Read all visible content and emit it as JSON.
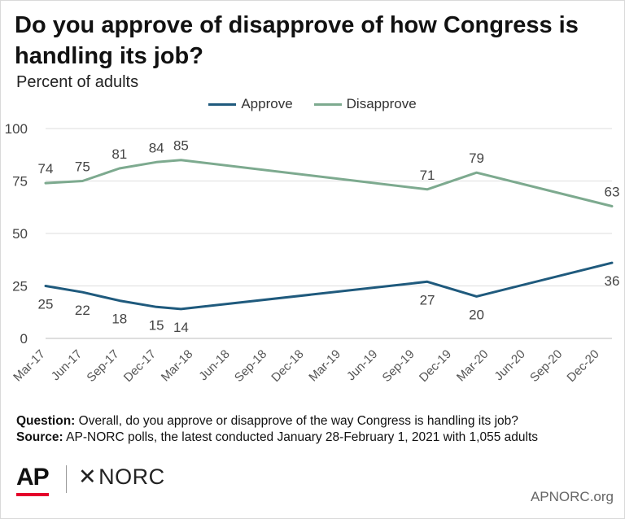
{
  "title": "Do you approve of disapprove of how Congress is handling its job?",
  "subtitle": "Percent of adults",
  "colors": {
    "approve": "#1f5a7d",
    "disapprove": "#7daa8f"
  },
  "chart_data": {
    "type": "line",
    "xlabel": "",
    "ylabel": "",
    "x_axis": {
      "start": "2017-03",
      "end": "2021-01",
      "ticks": [
        "Mar-17",
        "Jun-17",
        "Sep-17",
        "Dec-17",
        "Mar-18",
        "Jun-18",
        "Sep-18",
        "Dec-18",
        "Mar-19",
        "Jun-19",
        "Sep-19",
        "Dec-19",
        "Mar-20",
        "Jun-20",
        "Sep-20",
        "Dec-20"
      ]
    },
    "ylim": [
      0,
      100
    ],
    "yticks": [
      0,
      25,
      50,
      75,
      100
    ],
    "grid": true,
    "legend": "top-center",
    "series": [
      {
        "name": "Approve",
        "color": "#1f5a7d",
        "points": [
          {
            "x": "2017-03",
            "y": 25
          },
          {
            "x": "2017-06",
            "y": 22
          },
          {
            "x": "2017-09",
            "y": 18
          },
          {
            "x": "2017-12",
            "y": 15
          },
          {
            "x": "2018-02",
            "y": 14
          },
          {
            "x": "2019-10",
            "y": 27
          },
          {
            "x": "2020-02",
            "y": 20
          },
          {
            "x": "2021-01",
            "y": 36
          }
        ]
      },
      {
        "name": "Disapprove",
        "color": "#7daa8f",
        "points": [
          {
            "x": "2017-03",
            "y": 74
          },
          {
            "x": "2017-06",
            "y": 75
          },
          {
            "x": "2017-09",
            "y": 81
          },
          {
            "x": "2017-12",
            "y": 84
          },
          {
            "x": "2018-02",
            "y": 85
          },
          {
            "x": "2019-10",
            "y": 71
          },
          {
            "x": "2020-02",
            "y": 79
          },
          {
            "x": "2021-01",
            "y": 63
          }
        ]
      }
    ]
  },
  "footnotes": {
    "question_label": "Question:",
    "question_text": " Overall, do you approve or disapprove of the way Congress is handling its job?",
    "source_label": "Source:",
    "source_text": " AP-NORC polls, the latest conducted January 28-February 1, 2021 with 1,055 adults"
  },
  "logos": {
    "ap": "AP",
    "norc": "NORC",
    "norc_mark": "✕"
  },
  "website": "APNORC.org"
}
